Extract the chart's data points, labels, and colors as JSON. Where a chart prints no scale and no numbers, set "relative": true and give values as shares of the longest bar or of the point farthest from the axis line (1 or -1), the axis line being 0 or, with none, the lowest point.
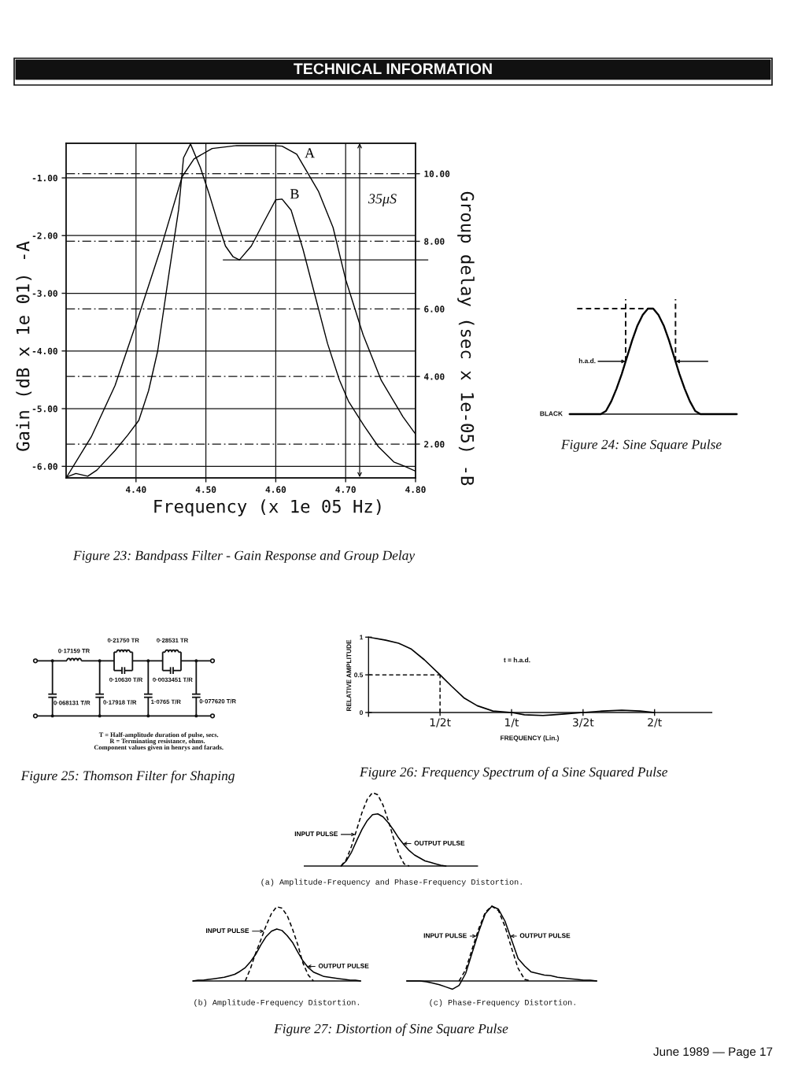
{
  "chart_data": [
    {
      "type": "other",
      "title": "TECHNICAL INFORMATION",
      "annotations": [
        "June 1989 — Page 17"
      ]
    },
    {
      "type": "line",
      "title": "Figure 23: Bandpass Filter - Gain Response and Group Delay",
      "xlabel": "Frequency (x 1e 05 Hz)",
      "ylabel": "Gain (dB x 1e 01) -A",
      "y2label": "Group delay (sec x 1e-05) -B",
      "xlim": [
        4.3,
        4.8
      ],
      "xticks": [
        {
          "value": 4.4,
          "label": "4.40"
        },
        {
          "value": 4.5,
          "label": "4.50"
        },
        {
          "value": 4.6,
          "label": "4.60"
        },
        {
          "value": 4.7,
          "label": "4.70"
        },
        {
          "value": 4.8,
          "label": "4.80"
        }
      ],
      "ylim": [
        -6.2,
        -0.4
      ],
      "yticks": [
        {
          "value": -6,
          "label": "-6.00"
        },
        {
          "value": -5,
          "label": "-5.00"
        },
        {
          "value": -4,
          "label": "-4.00"
        },
        {
          "value": -3,
          "label": "-3.00"
        },
        {
          "value": -2,
          "label": "-2.00"
        },
        {
          "value": -1,
          "label": "-1.00"
        }
      ],
      "y2lim": [
        1.0,
        10.9
      ],
      "y2ticks": [
        {
          "value": 2,
          "label": "2.00"
        },
        {
          "value": 4,
          "label": "4.00"
        },
        {
          "value": 6,
          "label": "6.00"
        },
        {
          "value": 8,
          "label": "8.00"
        },
        {
          "value": 10,
          "label": "10.00"
        }
      ],
      "grid": true,
      "series": [
        {
          "name": "A",
          "color": "#000000",
          "x": [
            4.3,
            4.336,
            4.37,
            4.404,
            4.435,
            4.466,
            4.483,
            4.509,
            4.544,
            4.596,
            4.609,
            4.63,
            4.643,
            4.661,
            4.682,
            4.7,
            4.725,
            4.751,
            4.782,
            4.8
          ],
          "values": [
            -6.2,
            -5.49,
            -4.6,
            -3.39,
            -2.24,
            -0.98,
            -0.67,
            -0.49,
            -0.44,
            -0.44,
            -0.45,
            -0.59,
            -0.86,
            -1.23,
            -1.86,
            -2.76,
            -3.72,
            -4.51,
            -5.14,
            -5.44
          ]
        },
        {
          "name": "B",
          "color": "#000000",
          "axis": "y2",
          "x": [
            4.3,
            4.314,
            4.331,
            4.344,
            4.37,
            4.388,
            4.404,
            4.418,
            4.431,
            4.448,
            4.461,
            4.468,
            4.478,
            4.492,
            4.505,
            4.518,
            4.528,
            4.539,
            4.548,
            4.565,
            4.583,
            4.6,
            4.609,
            4.622,
            4.639,
            4.656,
            4.674,
            4.691,
            4.704,
            4.726,
            4.747,
            4.769,
            4.786,
            4.8
          ],
          "values": [
            1.02,
            1.13,
            1.05,
            1.23,
            1.81,
            2.26,
            2.7,
            3.58,
            4.75,
            7.16,
            8.94,
            10.47,
            10.88,
            10.19,
            9.38,
            8.49,
            7.86,
            7.54,
            7.45,
            7.86,
            8.57,
            9.23,
            9.25,
            8.92,
            7.76,
            6.41,
            4.98,
            3.9,
            3.27,
            2.55,
            1.92,
            1.47,
            1.33,
            1.2
          ]
        }
      ],
      "ref_lines": [
        {
          "axis": "y2",
          "value": 7.45
        }
      ],
      "annotations": [
        "35μS"
      ]
    },
    {
      "type": "line",
      "title": "Figure 24: Sine Square Pulse",
      "relative": true,
      "categories": [
        null,
        null,
        null,
        null,
        null,
        null,
        null,
        null,
        null,
        null,
        null,
        null,
        null,
        null,
        null,
        null,
        null,
        null,
        null,
        null,
        null,
        null,
        null,
        null,
        null,
        null,
        null,
        null,
        null,
        null,
        null,
        null,
        null
      ],
      "color": "#000000",
      "values": [
        0,
        0,
        0,
        0,
        0,
        0,
        0,
        0.03,
        0.12,
        0.24,
        0.38,
        0.54,
        0.7,
        0.84,
        0.94,
        1,
        1,
        0.94,
        0.84,
        0.7,
        0.54,
        0.38,
        0.24,
        0.12,
        0.03,
        0,
        0,
        0,
        0,
        0,
        0,
        0,
        0
      ],
      "ref_lines": [
        {
          "axis": "y",
          "value": 1,
          "line_style": "dashed"
        }
      ],
      "annotations": [
        "h.a.d.",
        "BLACK"
      ]
    },
    {
      "type": "other",
      "title": "Figure 25: Thomson Filter for Shaping",
      "annotations": [
        "0·17159 TR",
        "0·21750 TR",
        "0·28531 TR",
        "0·10630 T/R",
        "0·0033451 T/R",
        "0·068131 T/R",
        "0·17918 T/R",
        "1·0765 T/R",
        "0·077620 T/R",
        "T = Half-amplitude duration of pulse, secs.",
        "R = Terminating resistance, ohms.",
        "Component values given in henrys and farads."
      ]
    },
    {
      "type": "line",
      "title": "Figure 26: Frequency Spectrum of a Sine Squared Pulse",
      "xlabel": "FREQUENCY (Lin.)",
      "ylabel": "RELATIVE AMPLITUDE",
      "color": "#000000",
      "x": [
        0,
        0.12,
        0.21,
        0.3,
        0.39,
        0.5,
        0.58,
        0.67,
        0.76,
        0.87,
        1.0,
        1.09,
        1.22,
        1.37,
        1.5,
        1.64,
        1.77,
        1.9,
        2.0
      ],
      "values": [
        1,
        0.96,
        0.92,
        0.84,
        0.7,
        0.5,
        0.35,
        0.19,
        0.09,
        0.02,
        0,
        -0.03,
        -0.04,
        -0.02,
        0,
        0.02,
        0.03,
        0.02,
        0
      ],
      "xlim": [
        0,
        2.4
      ],
      "xticks": [
        {
          "value": 0.5,
          "label": "1/2t"
        },
        {
          "value": 1,
          "label": "1/t"
        },
        {
          "value": 1.5,
          "label": "3/2t"
        },
        {
          "value": 2,
          "label": "2/t"
        }
      ],
      "ylim": [
        -0.05,
        1
      ],
      "yticks": [
        0,
        0.5,
        1
      ],
      "ref_lines": [
        {
          "axis": "y",
          "value": 0.5,
          "line_style": "dashed"
        },
        {
          "axis": "x",
          "value": 0.5,
          "line_style": "dashed"
        }
      ],
      "annotations": [
        "t = h.a.d."
      ]
    },
    {
      "type": "line",
      "title": "(a) Amplitude-Frequency and Phase-Frequency Distortion.",
      "relative": true,
      "categories": [
        null,
        null,
        null,
        null,
        null,
        null,
        null,
        null,
        null,
        null,
        null,
        null,
        null,
        null,
        null,
        null,
        null,
        null,
        null,
        null,
        null,
        null,
        null,
        null,
        null,
        null,
        null,
        null,
        null,
        null,
        null,
        null,
        null,
        null
      ],
      "series": [
        {
          "name": "INPUT PULSE",
          "color": "#000000",
          "line_style": "dashed",
          "values": [
            null,
            null,
            null,
            null,
            null,
            null,
            null,
            0,
            0.09,
            0.27,
            0.5,
            0.73,
            0.91,
            1,
            0.97,
            0.83,
            0.62,
            0.38,
            0.17,
            0.03,
            0,
            null,
            null,
            null,
            null,
            null,
            null,
            null,
            null,
            null,
            null,
            null,
            null,
            null
          ]
        },
        {
          "name": "OUTPUT PULSE",
          "color": "#000000",
          "values": [
            null,
            null,
            null,
            null,
            null,
            null,
            null,
            0,
            0.07,
            0.19,
            0.35,
            0.5,
            0.62,
            0.7,
            0.71,
            0.67,
            0.59,
            0.49,
            0.38,
            0.29,
            0.21,
            0.15,
            0.11,
            0.07,
            0.05,
            0.03,
            0.01,
            0,
            null,
            null,
            null,
            null,
            null,
            null
          ]
        }
      ]
    },
    {
      "type": "line",
      "title": "(b) Amplitude-Frequency Distortion.",
      "relative": true,
      "categories": [
        null,
        null,
        null,
        null,
        null,
        null,
        null,
        null,
        null,
        null,
        null,
        null,
        null,
        null,
        null,
        null,
        null,
        null,
        null,
        null,
        null,
        null,
        null,
        null,
        null,
        null,
        null,
        null,
        null,
        null,
        null,
        null,
        null
      ],
      "series": [
        {
          "name": "INPUT PULSE",
          "color": "#000000",
          "line_style": "dashed",
          "values": [
            null,
            null,
            null,
            null,
            null,
            null,
            null,
            null,
            null,
            null,
            0,
            0.17,
            0.38,
            0.56,
            0.75,
            0.91,
            1,
            0.98,
            0.88,
            0.7,
            0.49,
            0.24,
            0.08,
            0,
            null,
            null,
            null,
            null,
            null,
            null,
            null,
            null,
            null
          ]
        },
        {
          "name": "OUTPUT PULSE",
          "color": "#000000",
          "values": [
            0,
            0.01,
            0.01,
            0.02,
            0.03,
            0.04,
            0.05,
            0.07,
            0.09,
            0.13,
            0.18,
            0.26,
            0.36,
            0.49,
            0.6,
            0.67,
            0.7,
            0.68,
            0.61,
            0.52,
            0.39,
            0.27,
            0.18,
            0.12,
            0.09,
            0.06,
            0.05,
            0.04,
            0.03,
            0.02,
            0.01,
            0.01,
            0
          ]
        }
      ]
    },
    {
      "type": "line",
      "title": "(c) Phase-Frequency Distortion.",
      "relative": true,
      "categories": [
        null,
        null,
        null,
        null,
        null,
        null,
        null,
        null,
        null,
        null,
        null,
        null,
        null,
        null,
        null,
        null,
        null,
        null,
        null,
        null,
        null,
        null,
        null,
        null,
        null,
        null,
        null,
        null,
        null,
        null
      ],
      "series": [
        {
          "name": "INPUT PULSE",
          "color": "#000000",
          "line_style": "dashed",
          "values": [
            null,
            null,
            null,
            null,
            null,
            null,
            null,
            null,
            0,
            0.15,
            0.43,
            0.7,
            0.92,
            1,
            0.94,
            0.73,
            0.44,
            0.17,
            0.02,
            0,
            null,
            null,
            null,
            null,
            null,
            null,
            null,
            null,
            null,
            null
          ]
        },
        {
          "name": "OUTPUT PULSE",
          "color": "#000000",
          "values": [
            0,
            0,
            0,
            -0.01,
            -0.03,
            -0.05,
            -0.08,
            -0.11,
            -0.06,
            0.1,
            0.38,
            0.66,
            0.9,
            1,
            0.96,
            0.8,
            0.55,
            0.3,
            0.2,
            0.12,
            0.1,
            0.08,
            0.07,
            0.05,
            0.04,
            0.03,
            0.02,
            0.01,
            0.01,
            0
          ]
        }
      ]
    },
    {
      "type": "other",
      "title": "Figure 27: Distortion of Sine Square Pulse"
    }
  ]
}
